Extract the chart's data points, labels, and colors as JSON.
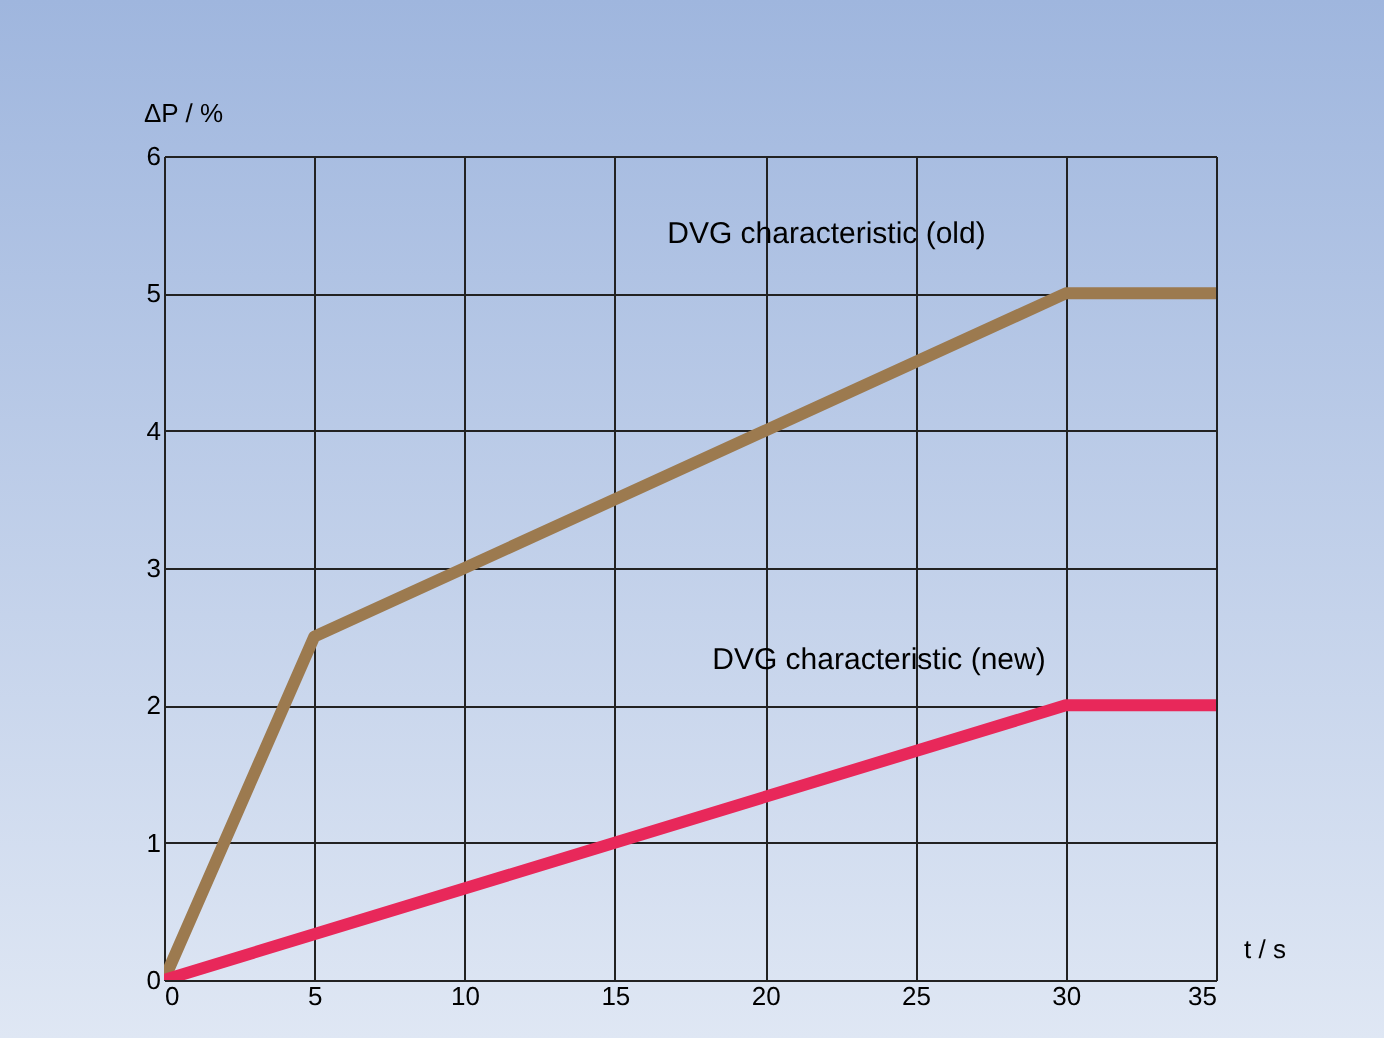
{
  "chart_data": {
    "type": "line",
    "xlabel": "t / s",
    "ylabel": "ΔP / %",
    "xlim": [
      0,
      35
    ],
    "xticks": [
      0,
      5,
      10,
      15,
      20,
      25,
      30,
      35
    ],
    "ylim": [
      0,
      6
    ],
    "yticks": [
      0,
      1,
      2,
      3,
      4,
      5,
      6
    ],
    "grid": true,
    "legend": false,
    "series": [
      {
        "name": "DVG characteristic (old)",
        "color": "#9c7a4f",
        "x": [
          0,
          5,
          30,
          35
        ],
        "values": [
          0,
          2.5,
          5,
          5
        ]
      },
      {
        "name": "DVG characteristic (new)",
        "color": "#e8285a",
        "x": [
          0,
          30,
          35
        ],
        "values": [
          0,
          2,
          2
        ]
      }
    ]
  }
}
